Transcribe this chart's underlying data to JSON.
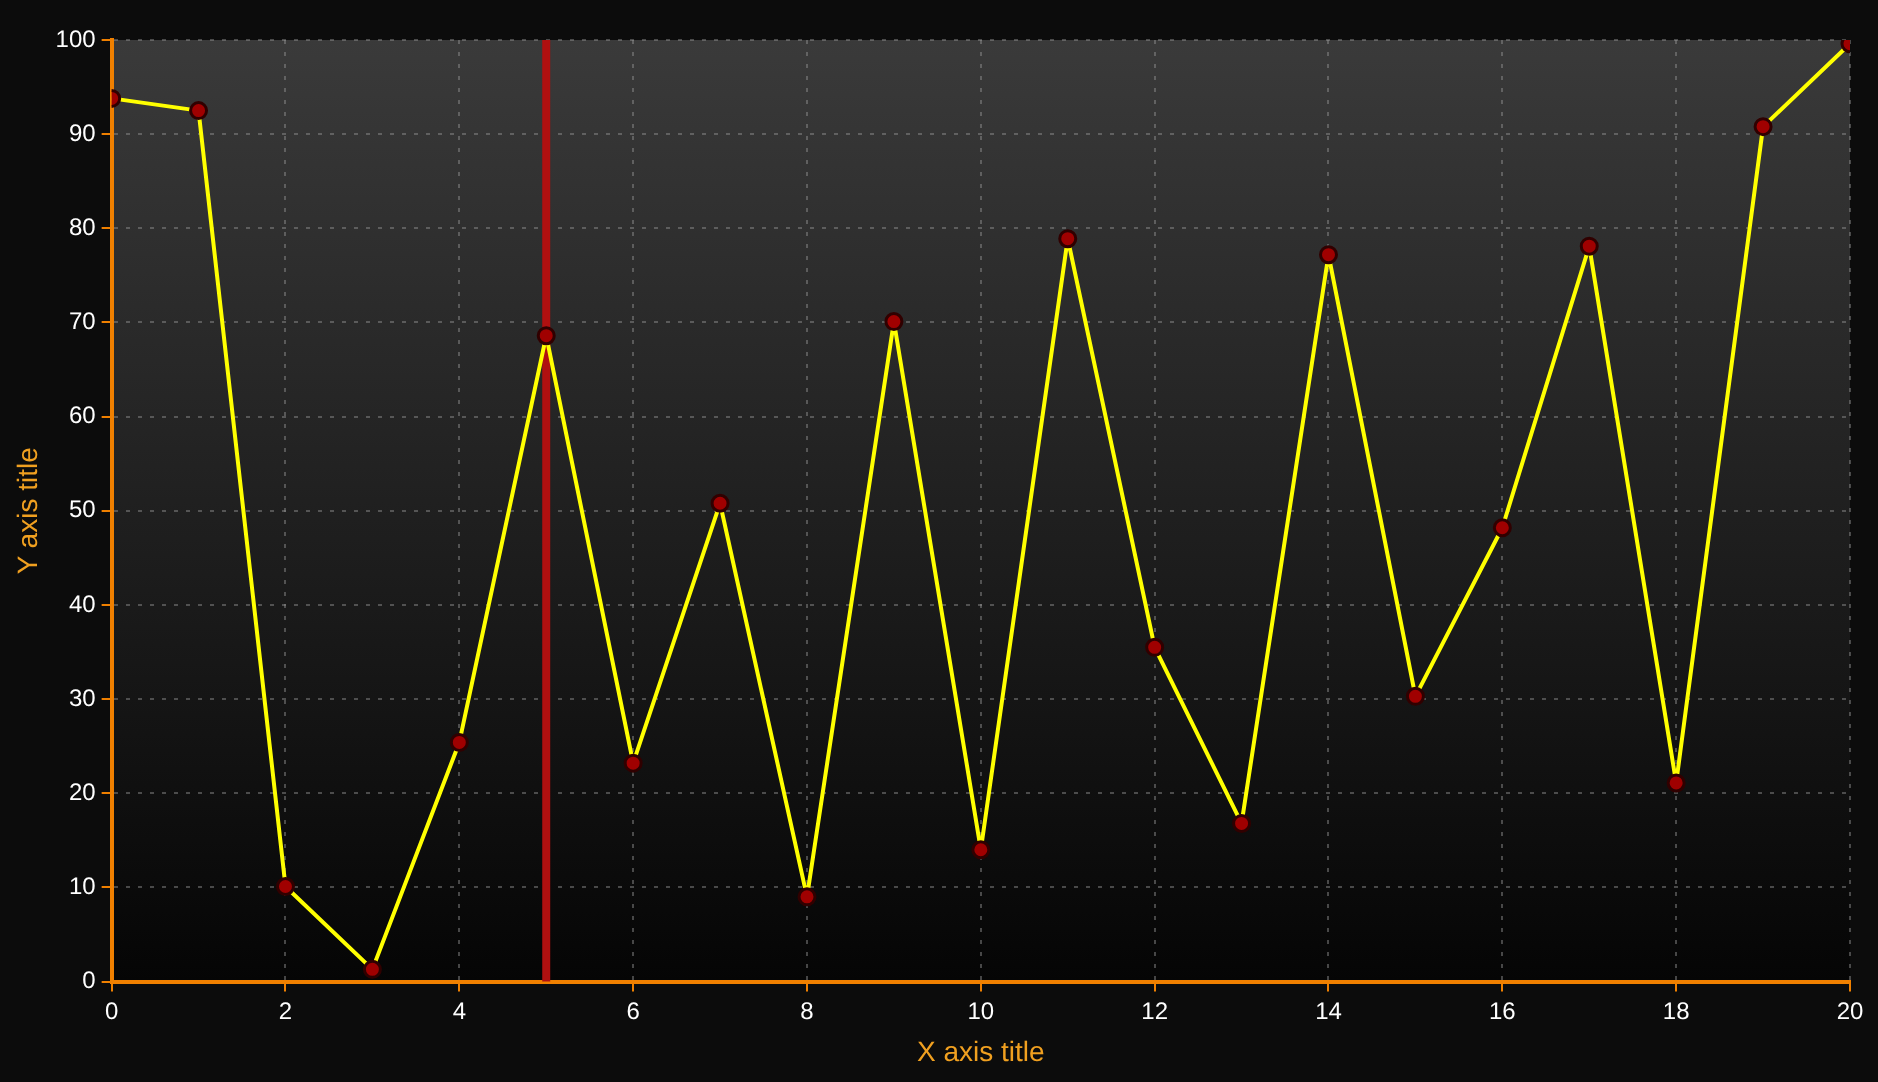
{
  "chart_data": {
    "type": "line",
    "xlabel": "X axis title",
    "ylabel": "Y axis title",
    "x": [
      0,
      1,
      2,
      3,
      4,
      5,
      6,
      7,
      8,
      9,
      10,
      11,
      12,
      13,
      14,
      15,
      16,
      17,
      18,
      19,
      20
    ],
    "series": [
      {
        "color": "#ffff00",
        "values": [
          93.8,
          92.5,
          10.1,
          1.3,
          25.4,
          68.6,
          23.2,
          50.8,
          9.0,
          70.1,
          14.0,
          78.9,
          35.5,
          16.8,
          77.2,
          30.3,
          48.2,
          78.1,
          21.1,
          90.8,
          99.6
        ]
      }
    ],
    "marker": "circle",
    "line_style": "solid",
    "grid": true,
    "legend": false,
    "xlim": [
      0,
      20
    ],
    "xticks": [
      0,
      2,
      4,
      6,
      8,
      10,
      12,
      14,
      16,
      18,
      20
    ],
    "ylim": [
      0,
      100
    ],
    "yticks": [
      0,
      10,
      20,
      30,
      40,
      50,
      60,
      70,
      80,
      90,
      100
    ],
    "ref_lines": [
      {
        "axis": "x",
        "value": 5,
        "color": "#b01010"
      }
    ]
  }
}
